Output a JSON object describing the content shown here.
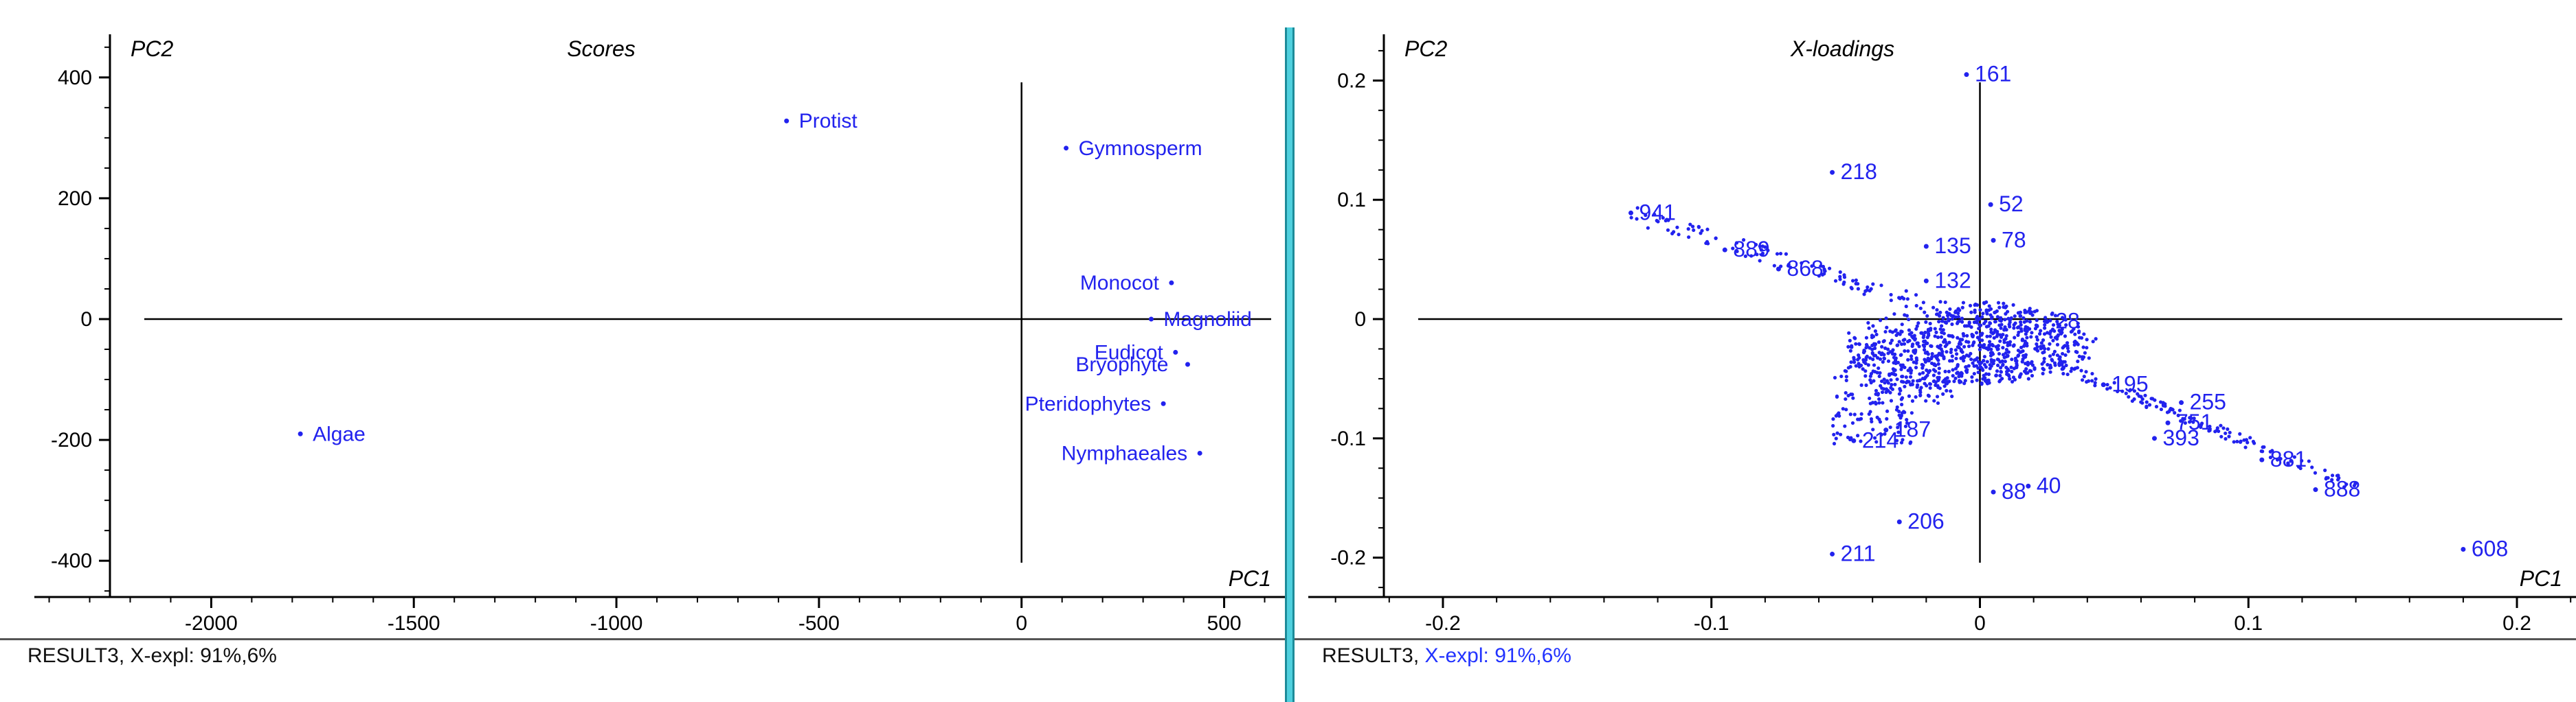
{
  "colors": {
    "points": "#2222ee",
    "axis": "#000000",
    "tick_text": "#000000",
    "divider": "#4fd0de"
  },
  "chart_data": [
    {
      "type": "scatter",
      "title": "Scores",
      "xlabel": "PC1",
      "ylabel": "PC2",
      "xlim": [
        -2250,
        650
      ],
      "ylim": [
        -460,
        460
      ],
      "xticks": [
        -2000,
        -1500,
        -1000,
        -500,
        0,
        500
      ],
      "yticks": [
        -400,
        -200,
        0,
        200,
        400
      ],
      "points": [
        {
          "label": "Protist",
          "x": -580,
          "y": 328
        },
        {
          "label": "Gymnosperm",
          "x": 110,
          "y": 283
        },
        {
          "label": "Monocot",
          "x": 370,
          "y": 60
        },
        {
          "label": "Magnoliid",
          "x": 320,
          "y": 0
        },
        {
          "label": "Eudicot",
          "x": 380,
          "y": -55
        },
        {
          "label": "Bryophyte",
          "x": 410,
          "y": -75
        },
        {
          "label": "Pteridophytes",
          "x": 350,
          "y": -140
        },
        {
          "label": "Nymphaeales",
          "x": 440,
          "y": -222
        },
        {
          "label": "Algae",
          "x": -1780,
          "y": -190
        }
      ],
      "footer_prefix": "RESULT3, X-expl: 91%,6%"
    },
    {
      "type": "scatter",
      "title": "X-loadings",
      "xlabel": "PC1",
      "ylabel": "PC2",
      "xlim": [
        -0.222,
        0.222
      ],
      "ylim": [
        -0.233,
        0.233
      ],
      "xticks": [
        -0.2,
        -0.1,
        0,
        0.1,
        0.2
      ],
      "yticks": [
        -0.2,
        -0.1,
        0,
        0.1,
        0.2
      ],
      "points": [
        {
          "label": "161",
          "x": -0.005,
          "y": 0.205
        },
        {
          "label": "218",
          "x": -0.055,
          "y": 0.123
        },
        {
          "label": "52",
          "x": 0.004,
          "y": 0.096
        },
        {
          "label": "941",
          "x": -0.13,
          "y": 0.089
        },
        {
          "label": "889",
          "x": -0.095,
          "y": 0.058
        },
        {
          "label": "868",
          "x": -0.075,
          "y": 0.042
        },
        {
          "label": "135",
          "x": -0.02,
          "y": 0.061
        },
        {
          "label": "78",
          "x": 0.005,
          "y": 0.066
        },
        {
          "label": "132",
          "x": -0.02,
          "y": 0.032
        },
        {
          "label": "28",
          "x": 0.025,
          "y": -0.002
        },
        {
          "label": "195",
          "x": 0.046,
          "y": -0.055
        },
        {
          "label": "255",
          "x": 0.075,
          "y": -0.07
        },
        {
          "label": "751",
          "x": 0.07,
          "y": -0.087
        },
        {
          "label": "393",
          "x": 0.065,
          "y": -0.1
        },
        {
          "label": "881",
          "x": 0.105,
          "y": -0.118
        },
        {
          "label": "888",
          "x": 0.125,
          "y": -0.143
        },
        {
          "label": "40",
          "x": 0.018,
          "y": -0.14
        },
        {
          "label": "88",
          "x": 0.005,
          "y": -0.145
        },
        {
          "label": "206",
          "x": -0.03,
          "y": -0.17
        },
        {
          "label": "211",
          "x": -0.055,
          "y": -0.197
        },
        {
          "label": "214",
          "x": -0.047,
          "y": -0.102
        },
        {
          "label": "187",
          "x": -0.035,
          "y": -0.093
        },
        {
          "label": "608",
          "x": 0.18,
          "y": -0.193
        }
      ],
      "footer_prefix": "RESULT3, ",
      "footer_accent": "X-expl: 91%,6%"
    }
  ]
}
